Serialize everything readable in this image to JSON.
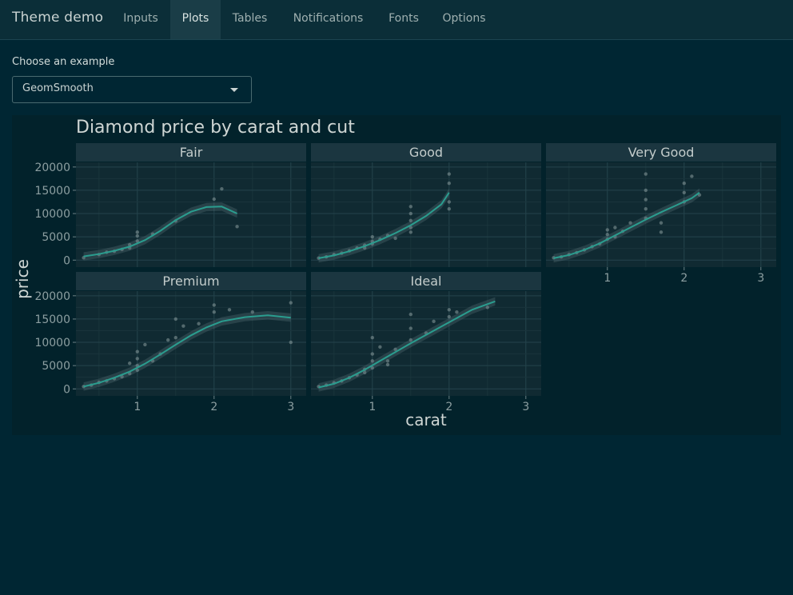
{
  "app": {
    "title": "Theme demo",
    "tabs": [
      {
        "label": "Inputs",
        "active": false
      },
      {
        "label": "Plots",
        "active": true
      },
      {
        "label": "Tables",
        "active": false
      },
      {
        "label": "Notifications",
        "active": false
      },
      {
        "label": "Fonts",
        "active": false
      },
      {
        "label": "Options",
        "active": false
      }
    ]
  },
  "controls": {
    "example_label": "Choose an example",
    "example_value": "GeomSmooth"
  },
  "colors": {
    "background": "#002633",
    "navbar": "#0b2e38",
    "plot_bg": "#02222b",
    "panel_bg": "#102a32",
    "strip_bg": "#1b3640",
    "accent": "#2a9d8f"
  },
  "chart_data": {
    "type": "scatter",
    "title": "Diamond price by carat and cut",
    "xlabel": "carat",
    "ylabel": "price",
    "xlim": [
      0.2,
      3.2
    ],
    "ylim": [
      -1500,
      21000
    ],
    "x_ticks": [
      1,
      2,
      3
    ],
    "y_ticks": [
      0,
      5000,
      10000,
      15000,
      20000
    ],
    "grid": true,
    "smooth": true,
    "facets": [
      {
        "name": "Fair",
        "points": [
          [
            0.3,
            500
          ],
          [
            0.5,
            1200
          ],
          [
            0.7,
            1900
          ],
          [
            0.8,
            2300
          ],
          [
            0.9,
            3300
          ],
          [
            1.0,
            4100
          ],
          [
            1.0,
            5200
          ],
          [
            1.0,
            6000
          ],
          [
            1.2,
            5600
          ],
          [
            1.5,
            8400
          ],
          [
            2.0,
            13100
          ],
          [
            2.1,
            15300
          ],
          [
            2.3,
            7200
          ],
          [
            0.6,
            1700
          ],
          [
            0.9,
            2600
          ]
        ],
        "smooth": [
          [
            0.3,
            800
          ],
          [
            0.5,
            1300
          ],
          [
            0.7,
            2000
          ],
          [
            0.9,
            2900
          ],
          [
            1.1,
            4300
          ],
          [
            1.3,
            6300
          ],
          [
            1.5,
            8600
          ],
          [
            1.7,
            10400
          ],
          [
            1.9,
            11400
          ],
          [
            2.1,
            11500
          ],
          [
            2.3,
            10000
          ]
        ]
      },
      {
        "name": "Good",
        "points": [
          [
            0.3,
            450
          ],
          [
            0.4,
            700
          ],
          [
            0.5,
            1200
          ],
          [
            0.6,
            1500
          ],
          [
            0.7,
            2000
          ],
          [
            0.8,
            2600
          ],
          [
            0.9,
            3200
          ],
          [
            1.0,
            4000
          ],
          [
            1.0,
            5000
          ],
          [
            1.0,
            3500
          ],
          [
            1.1,
            4500
          ],
          [
            1.2,
            5300
          ],
          [
            1.5,
            6000
          ],
          [
            1.5,
            7000
          ],
          [
            1.5,
            8500
          ],
          [
            1.5,
            10000
          ],
          [
            1.5,
            11500
          ],
          [
            2.0,
            11000
          ],
          [
            2.0,
            12500
          ],
          [
            2.0,
            16500
          ],
          [
            2.0,
            18500
          ],
          [
            0.9,
            2600
          ],
          [
            1.3,
            4700
          ]
        ],
        "smooth": [
          [
            0.3,
            400
          ],
          [
            0.5,
            1000
          ],
          [
            0.7,
            1900
          ],
          [
            0.9,
            3000
          ],
          [
            1.1,
            4300
          ],
          [
            1.3,
            5800
          ],
          [
            1.5,
            7500
          ],
          [
            1.7,
            9500
          ],
          [
            1.9,
            12000
          ],
          [
            2.0,
            14500
          ]
        ]
      },
      {
        "name": "Very Good",
        "points": [
          [
            0.3,
            500
          ],
          [
            0.4,
            700
          ],
          [
            0.5,
            1200
          ],
          [
            0.6,
            1600
          ],
          [
            0.7,
            2200
          ],
          [
            0.8,
            2900
          ],
          [
            0.9,
            3500
          ],
          [
            1.0,
            4500
          ],
          [
            1.0,
            5500
          ],
          [
            1.0,
            6500
          ],
          [
            1.1,
            5000
          ],
          [
            1.1,
            7000
          ],
          [
            1.2,
            6200
          ],
          [
            1.3,
            8000
          ],
          [
            1.5,
            9000
          ],
          [
            1.5,
            11000
          ],
          [
            1.5,
            13000
          ],
          [
            1.5,
            15000
          ],
          [
            1.5,
            18500
          ],
          [
            1.7,
            8000
          ],
          [
            1.7,
            6000
          ],
          [
            2.0,
            12500
          ],
          [
            2.0,
            14500
          ],
          [
            2.0,
            16500
          ],
          [
            2.1,
            18000
          ],
          [
            2.2,
            14000
          ]
        ],
        "smooth": [
          [
            0.3,
            400
          ],
          [
            0.5,
            1100
          ],
          [
            0.7,
            2200
          ],
          [
            0.9,
            3600
          ],
          [
            1.1,
            5300
          ],
          [
            1.3,
            7000
          ],
          [
            1.5,
            8700
          ],
          [
            1.7,
            10300
          ],
          [
            1.9,
            11800
          ],
          [
            2.1,
            13300
          ],
          [
            2.2,
            14500
          ]
        ]
      },
      {
        "name": "Premium",
        "points": [
          [
            0.3,
            500
          ],
          [
            0.4,
            800
          ],
          [
            0.5,
            1400
          ],
          [
            0.6,
            1700
          ],
          [
            0.7,
            2200
          ],
          [
            0.8,
            2600
          ],
          [
            0.9,
            3300
          ],
          [
            1.0,
            4000
          ],
          [
            1.0,
            5000
          ],
          [
            1.0,
            6500
          ],
          [
            1.0,
            8000
          ],
          [
            1.1,
            9500
          ],
          [
            1.2,
            6000
          ],
          [
            1.3,
            7500
          ],
          [
            1.5,
            11000
          ],
          [
            1.5,
            15000
          ],
          [
            1.6,
            13500
          ],
          [
            1.8,
            14000
          ],
          [
            2.0,
            16500
          ],
          [
            2.0,
            18000
          ],
          [
            2.2,
            17000
          ],
          [
            2.5,
            16500
          ],
          [
            3.0,
            10000
          ],
          [
            3.0,
            18500
          ],
          [
            0.9,
            5500
          ],
          [
            1.4,
            10500
          ]
        ],
        "smooth": [
          [
            0.3,
            500
          ],
          [
            0.5,
            1300
          ],
          [
            0.7,
            2400
          ],
          [
            0.9,
            3700
          ],
          [
            1.1,
            5400
          ],
          [
            1.3,
            7400
          ],
          [
            1.5,
            9500
          ],
          [
            1.7,
            11500
          ],
          [
            1.9,
            13200
          ],
          [
            2.1,
            14500
          ],
          [
            2.4,
            15400
          ],
          [
            2.7,
            15800
          ],
          [
            3.0,
            15300
          ]
        ]
      },
      {
        "name": "Ideal",
        "points": [
          [
            0.3,
            500
          ],
          [
            0.4,
            800
          ],
          [
            0.5,
            1300
          ],
          [
            0.6,
            1700
          ],
          [
            0.7,
            2400
          ],
          [
            0.8,
            3000
          ],
          [
            0.9,
            3500
          ],
          [
            1.0,
            4500
          ],
          [
            1.0,
            6000
          ],
          [
            1.0,
            7500
          ],
          [
            1.1,
            9000
          ],
          [
            1.0,
            11000
          ],
          [
            1.2,
            6000
          ],
          [
            1.3,
            8500
          ],
          [
            1.5,
            10500
          ],
          [
            1.5,
            13000
          ],
          [
            1.5,
            16000
          ],
          [
            1.7,
            12000
          ],
          [
            1.8,
            14500
          ],
          [
            2.0,
            15500
          ],
          [
            2.0,
            17000
          ],
          [
            2.1,
            16500
          ],
          [
            2.5,
            17500
          ],
          [
            0.9,
            4200
          ],
          [
            1.2,
            5200
          ]
        ],
        "smooth": [
          [
            0.3,
            300
          ],
          [
            0.5,
            1100
          ],
          [
            0.7,
            2400
          ],
          [
            0.9,
            4100
          ],
          [
            1.1,
            6000
          ],
          [
            1.3,
            7900
          ],
          [
            1.5,
            9800
          ],
          [
            1.7,
            11600
          ],
          [
            1.9,
            13400
          ],
          [
            2.1,
            15200
          ],
          [
            2.3,
            17000
          ],
          [
            2.6,
            18800
          ]
        ]
      }
    ]
  }
}
